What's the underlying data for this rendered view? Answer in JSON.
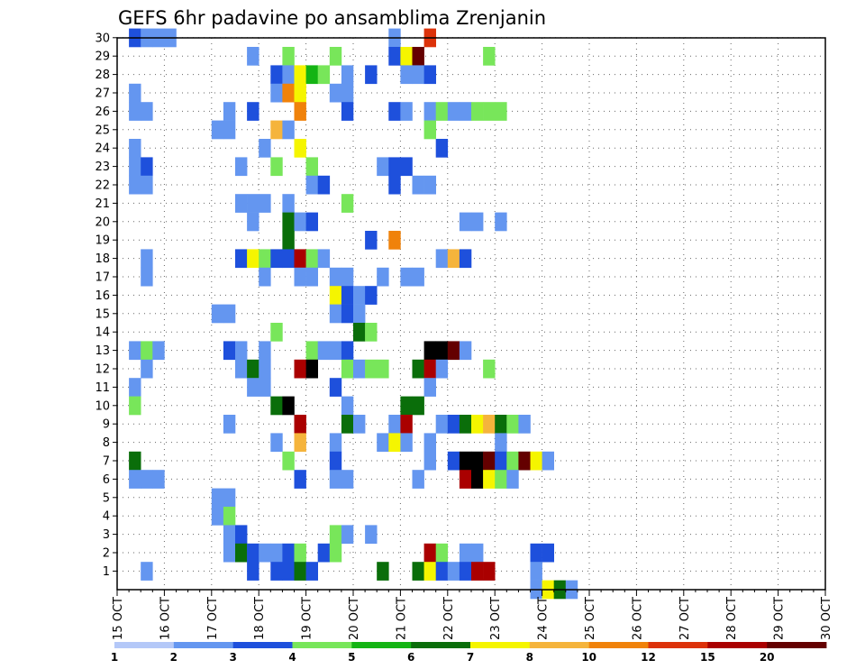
{
  "chart_data": {
    "type": "heatmap",
    "title": "GEFS 6hr padavine po ansamblima Zrenjanin",
    "x_tick_labels": [
      "15 OCT",
      "16 OCT",
      "17 OCT",
      "18 OCT",
      "19 OCT",
      "20 OCT",
      "21 OCT",
      "22 OCT",
      "23 OCT",
      "24 OCT",
      "25 OCT",
      "26 OCT",
      "27 OCT",
      "28 OCT",
      "29 OCT",
      "30 OCT"
    ],
    "y_tick_labels": [
      "1",
      "2",
      "3",
      "4",
      "5",
      "6",
      "7",
      "8",
      "9",
      "10",
      "11",
      "12",
      "13",
      "14",
      "15",
      "16",
      "17",
      "18",
      "19",
      "20",
      "21",
      "22",
      "23",
      "24",
      "25",
      "26",
      "27",
      "28",
      "29",
      "30"
    ],
    "x_steps_per_day": 4,
    "y_range": [
      1,
      30
    ],
    "grid": true,
    "legend_placement": "bottom",
    "colorbar": {
      "ticks": [
        "1",
        "2",
        "3",
        "4",
        "5",
        "6",
        "7",
        "8",
        "10",
        "12",
        "15",
        "20"
      ],
      "colors": [
        "#b4c8f8",
        "#6496f0",
        "#1e50dc",
        "#78e65a",
        "#14b414",
        "#0a6e0a",
        "#f5f500",
        "#f5b43c",
        "#f0820a",
        "#dc320a",
        "#aa0000",
        "#640000"
      ]
    },
    "cells": [
      [
        1,
        30,
        2
      ],
      [
        2,
        30,
        1
      ],
      [
        3,
        30,
        1
      ],
      [
        4,
        30,
        1
      ],
      [
        23,
        30,
        1
      ],
      [
        26,
        30,
        9
      ],
      [
        11,
        29,
        1
      ],
      [
        14,
        29,
        3
      ],
      [
        18,
        29,
        3
      ],
      [
        23,
        29,
        2
      ],
      [
        24,
        29,
        6
      ],
      [
        25,
        29,
        11
      ],
      [
        31,
        29,
        3
      ],
      [
        13,
        28,
        2
      ],
      [
        14,
        28,
        1
      ],
      [
        15,
        28,
        6
      ],
      [
        16,
        28,
        4
      ],
      [
        17,
        28,
        3
      ],
      [
        19,
        28,
        1
      ],
      [
        21,
        28,
        2
      ],
      [
        24,
        28,
        1
      ],
      [
        25,
        28,
        1
      ],
      [
        26,
        28,
        2
      ],
      [
        1,
        27,
        1
      ],
      [
        13,
        27,
        1
      ],
      [
        14,
        27,
        8
      ],
      [
        15,
        27,
        6
      ],
      [
        18,
        27,
        1
      ],
      [
        19,
        27,
        1
      ],
      [
        1,
        26,
        1
      ],
      [
        2,
        26,
        1
      ],
      [
        9,
        26,
        1
      ],
      [
        11,
        26,
        2
      ],
      [
        15,
        26,
        8
      ],
      [
        19,
        26,
        2
      ],
      [
        23,
        26,
        2
      ],
      [
        24,
        26,
        1
      ],
      [
        26,
        26,
        1
      ],
      [
        27,
        26,
        3
      ],
      [
        28,
        26,
        1
      ],
      [
        29,
        26,
        1
      ],
      [
        30,
        26,
        3
      ],
      [
        31,
        26,
        3
      ],
      [
        32,
        26,
        3
      ],
      [
        8,
        25,
        1
      ],
      [
        9,
        25,
        1
      ],
      [
        13,
        25,
        7
      ],
      [
        14,
        25,
        1
      ],
      [
        26,
        25,
        3
      ],
      [
        1,
        24,
        1
      ],
      [
        12,
        24,
        1
      ],
      [
        15,
        24,
        6
      ],
      [
        27,
        24,
        2
      ],
      [
        1,
        23,
        1
      ],
      [
        2,
        23,
        2
      ],
      [
        10,
        23,
        1
      ],
      [
        13,
        23,
        3
      ],
      [
        16,
        23,
        3
      ],
      [
        22,
        23,
        1
      ],
      [
        23,
        23,
        2
      ],
      [
        24,
        23,
        2
      ],
      [
        1,
        22,
        1
      ],
      [
        2,
        22,
        1
      ],
      [
        16,
        22,
        1
      ],
      [
        17,
        22,
        2
      ],
      [
        23,
        22,
        2
      ],
      [
        25,
        22,
        1
      ],
      [
        26,
        22,
        1
      ],
      [
        10,
        21,
        1
      ],
      [
        11,
        21,
        1
      ],
      [
        12,
        21,
        1
      ],
      [
        14,
        21,
        1
      ],
      [
        19,
        21,
        3
      ],
      [
        11,
        20,
        1
      ],
      [
        14,
        20,
        5
      ],
      [
        15,
        20,
        1
      ],
      [
        16,
        20,
        2
      ],
      [
        29,
        20,
        1
      ],
      [
        30,
        20,
        1
      ],
      [
        32,
        20,
        1
      ],
      [
        14,
        19,
        5
      ],
      [
        21,
        19,
        2
      ],
      [
        23,
        19,
        8
      ],
      [
        2,
        18,
        1
      ],
      [
        10,
        18,
        2
      ],
      [
        11,
        18,
        6
      ],
      [
        12,
        18,
        3
      ],
      [
        13,
        18,
        2
      ],
      [
        14,
        18,
        2
      ],
      [
        15,
        18,
        10
      ],
      [
        16,
        18,
        3
      ],
      [
        17,
        18,
        1
      ],
      [
        27,
        18,
        1
      ],
      [
        28,
        18,
        7
      ],
      [
        29,
        18,
        2
      ],
      [
        2,
        17,
        1
      ],
      [
        12,
        17,
        1
      ],
      [
        15,
        17,
        1
      ],
      [
        16,
        17,
        1
      ],
      [
        18,
        17,
        1
      ],
      [
        19,
        17,
        1
      ],
      [
        22,
        17,
        1
      ],
      [
        24,
        17,
        1
      ],
      [
        25,
        17,
        1
      ],
      [
        18,
        16,
        6
      ],
      [
        19,
        16,
        2
      ],
      [
        20,
        16,
        1
      ],
      [
        21,
        16,
        2
      ],
      [
        8,
        15,
        1
      ],
      [
        9,
        15,
        1
      ],
      [
        18,
        15,
        1
      ],
      [
        19,
        15,
        2
      ],
      [
        20,
        15,
        1
      ],
      [
        13,
        14,
        3
      ],
      [
        20,
        14,
        5
      ],
      [
        21,
        14,
        3
      ],
      [
        1,
        13,
        1
      ],
      [
        2,
        13,
        3
      ],
      [
        3,
        13,
        1
      ],
      [
        9,
        13,
        2
      ],
      [
        10,
        13,
        1
      ],
      [
        12,
        13,
        1
      ],
      [
        16,
        13,
        3
      ],
      [
        17,
        13,
        1
      ],
      [
        18,
        13,
        1
      ],
      [
        19,
        13,
        2
      ],
      [
        26,
        13,
        13
      ],
      [
        27,
        13,
        12
      ],
      [
        28,
        13,
        11
      ],
      [
        29,
        13,
        1
      ],
      [
        2,
        12,
        1
      ],
      [
        10,
        12,
        1
      ],
      [
        11,
        12,
        5
      ],
      [
        12,
        12,
        1
      ],
      [
        15,
        12,
        10
      ],
      [
        16,
        12,
        13
      ],
      [
        19,
        12,
        3
      ],
      [
        20,
        12,
        1
      ],
      [
        21,
        12,
        3
      ],
      [
        22,
        12,
        3
      ],
      [
        25,
        12,
        5
      ],
      [
        26,
        12,
        10
      ],
      [
        27,
        12,
        1
      ],
      [
        31,
        12,
        3
      ],
      [
        1,
        11,
        1
      ],
      [
        11,
        11,
        1
      ],
      [
        12,
        11,
        1
      ],
      [
        18,
        11,
        2
      ],
      [
        26,
        11,
        1
      ],
      [
        1,
        10,
        3
      ],
      [
        13,
        10,
        5
      ],
      [
        14,
        10,
        13
      ],
      [
        19,
        10,
        1
      ],
      [
        24,
        10,
        5
      ],
      [
        25,
        10,
        5
      ],
      [
        9,
        9,
        1
      ],
      [
        15,
        9,
        10
      ],
      [
        19,
        9,
        5
      ],
      [
        20,
        9,
        1
      ],
      [
        23,
        9,
        1
      ],
      [
        24,
        9,
        10
      ],
      [
        27,
        9,
        1
      ],
      [
        28,
        9,
        2
      ],
      [
        29,
        9,
        5
      ],
      [
        30,
        9,
        6
      ],
      [
        31,
        9,
        7
      ],
      [
        32,
        9,
        5
      ],
      [
        33,
        9,
        3
      ],
      [
        34,
        9,
        1
      ],
      [
        13,
        8,
        1
      ],
      [
        15,
        8,
        7
      ],
      [
        18,
        8,
        1
      ],
      [
        22,
        8,
        1
      ],
      [
        23,
        8,
        6
      ],
      [
        24,
        8,
        1
      ],
      [
        26,
        8,
        1
      ],
      [
        32,
        8,
        1
      ],
      [
        1,
        7,
        5
      ],
      [
        14,
        7,
        3
      ],
      [
        18,
        7,
        2
      ],
      [
        26,
        7,
        1
      ],
      [
        28,
        7,
        2
      ],
      [
        29,
        7,
        12
      ],
      [
        30,
        7,
        12
      ],
      [
        31,
        7,
        11
      ],
      [
        32,
        7,
        2
      ],
      [
        33,
        7,
        3
      ],
      [
        34,
        7,
        11
      ],
      [
        35,
        7,
        6
      ],
      [
        36,
        7,
        1
      ],
      [
        1,
        6,
        1
      ],
      [
        2,
        6,
        1
      ],
      [
        3,
        6,
        1
      ],
      [
        15,
        6,
        2
      ],
      [
        18,
        6,
        1
      ],
      [
        19,
        6,
        1
      ],
      [
        25,
        6,
        1
      ],
      [
        29,
        6,
        10
      ],
      [
        30,
        6,
        12
      ],
      [
        31,
        6,
        6
      ],
      [
        32,
        6,
        3
      ],
      [
        33,
        6,
        1
      ],
      [
        8,
        5,
        1
      ],
      [
        9,
        5,
        1
      ],
      [
        8,
        4,
        1
      ],
      [
        9,
        4,
        3
      ],
      [
        9,
        3,
        1
      ],
      [
        10,
        3,
        2
      ],
      [
        18,
        3,
        3
      ],
      [
        19,
        3,
        1
      ],
      [
        21,
        3,
        1
      ],
      [
        9,
        2,
        1
      ],
      [
        10,
        2,
        5
      ],
      [
        11,
        2,
        2
      ],
      [
        12,
        2,
        1
      ],
      [
        13,
        2,
        1
      ],
      [
        14,
        2,
        2
      ],
      [
        15,
        2,
        3
      ],
      [
        17,
        2,
        2
      ],
      [
        18,
        2,
        3
      ],
      [
        26,
        2,
        10
      ],
      [
        27,
        2,
        3
      ],
      [
        29,
        2,
        1
      ],
      [
        30,
        2,
        1
      ],
      [
        35,
        2,
        2
      ],
      [
        36,
        2,
        2
      ],
      [
        2,
        1,
        1
      ],
      [
        11,
        1,
        2
      ],
      [
        13,
        1,
        2
      ],
      [
        14,
        1,
        2
      ],
      [
        15,
        1,
        5
      ],
      [
        16,
        1,
        2
      ],
      [
        22,
        1,
        5
      ],
      [
        25,
        1,
        5
      ],
      [
        26,
        1,
        6
      ],
      [
        27,
        1,
        2
      ],
      [
        28,
        1,
        1
      ],
      [
        29,
        1,
        2
      ],
      [
        30,
        1,
        10
      ],
      [
        31,
        1,
        10
      ],
      [
        35,
        1,
        1
      ],
      [
        35,
        0,
        1
      ],
      [
        36,
        0,
        6
      ],
      [
        37,
        0,
        5
      ],
      [
        38,
        0,
        1
      ]
    ]
  }
}
